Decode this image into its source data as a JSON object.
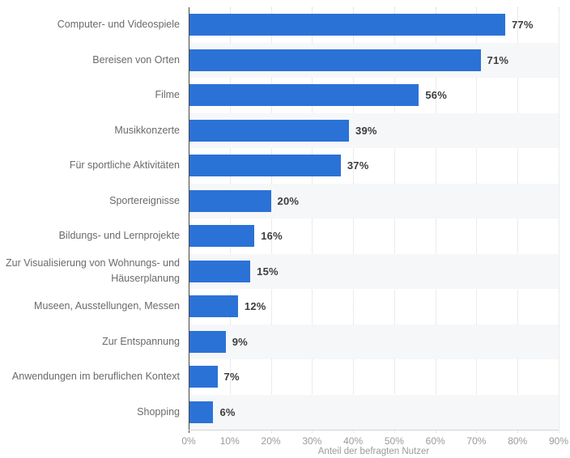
{
  "chart_data": {
    "type": "bar",
    "orientation": "horizontal",
    "categories": [
      "Computer- und Videospiele",
      "Bereisen von Orten",
      "Filme",
      "Musikkonzerte",
      "Für sportliche Aktivitäten",
      "Sportereignisse",
      "Bildungs- und Lernprojekte",
      "Zur Visualisierung von Wohnungs- und Häuserplanung",
      "Museen, Ausstellungen, Messen",
      "Zur Entspannung",
      "Anwendungen im beruflichen Kontext",
      "Shopping"
    ],
    "values": [
      77,
      71,
      56,
      39,
      37,
      20,
      16,
      15,
      12,
      9,
      7,
      6
    ],
    "value_labels": [
      "77%",
      "71%",
      "56%",
      "39%",
      "37%",
      "20%",
      "16%",
      "15%",
      "12%",
      "9%",
      "7%",
      "6%"
    ],
    "xlabel": "Anteil der befragten Nutzer",
    "ylabel": "",
    "xlim": [
      0,
      90
    ],
    "x_ticks": [
      "0%",
      "10%",
      "20%",
      "30%",
      "40%",
      "50%",
      "60%",
      "70%",
      "80%",
      "90%"
    ],
    "grid": "vertical-dotted",
    "legend": "none",
    "bar_color": "#2b72d6",
    "band_color": "#f6f7f9",
    "axis_color": "#474747",
    "tick_color": "#9b9b9b"
  }
}
